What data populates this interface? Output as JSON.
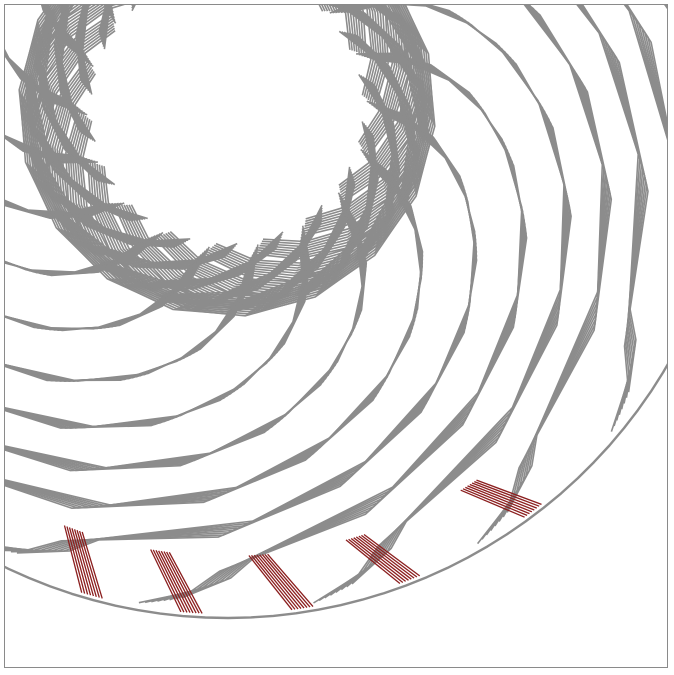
{
  "diagram": {
    "kind": "winding-pattern",
    "colors": {
      "background": "#ffffff",
      "frame": "#8a8a8a",
      "wire": "#8c8c8c",
      "lead": "#8b1e1e"
    },
    "turn_groups": 18,
    "wires_per_group": 8,
    "highlighted_leads": 6
  }
}
